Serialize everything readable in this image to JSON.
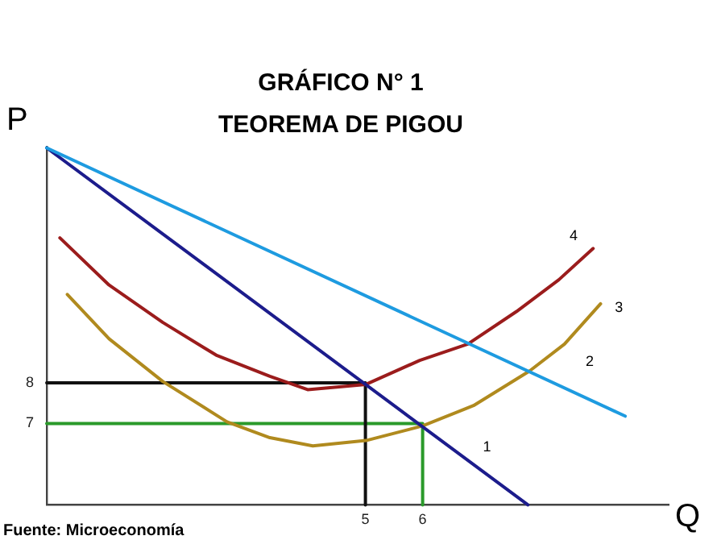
{
  "chart_data": {
    "type": "line",
    "title": "GRÁFICO N° 1",
    "subtitle": "TEOREMA DE PIGOU",
    "xlabel": "Q",
    "ylabel": "P",
    "xlim": [
      -0.57,
      10.3
    ],
    "ylim": [
      5,
      13.8
    ],
    "xticks": [
      5,
      6
    ],
    "yticks": [
      7,
      8
    ],
    "legend": false,
    "marker": "none",
    "line_style": "solid",
    "series": [
      {
        "color": "#1e9be0",
        "x": [
          -0.57,
          9.54
        ],
        "values": [
          13.77,
          7.18
        ]
      },
      {
        "color": "#1c1c8c",
        "x": [
          -0.57,
          7.84
        ],
        "values": [
          13.77,
          5
        ]
      },
      {
        "color": "#9b1c1c",
        "x": [
          -0.34,
          0.52,
          1.46,
          2.39,
          3.33,
          3.99,
          5.01,
          5.95,
          6.79,
          7.64,
          8.38,
          8.98
        ],
        "values": [
          11.56,
          10.4,
          9.48,
          8.68,
          8.16,
          7.83,
          7.96,
          8.55,
          8.95,
          9.75,
          10.53,
          11.3
        ]
      },
      {
        "color": "#b08a1e",
        "x": [
          -0.21,
          0.52,
          1.46,
          2.58,
          3.33,
          4.08,
          5.01,
          6,
          6.89,
          7.87,
          8.48,
          9.11
        ],
        "values": [
          10.17,
          9.08,
          8.03,
          7.04,
          6.65,
          6.45,
          6.58,
          6.94,
          7.44,
          8.29,
          8.95,
          9.94
        ]
      },
      {
        "color": "#111111",
        "x": [
          -0.57,
          5,
          5
        ],
        "values": [
          8,
          8,
          5
        ]
      },
      {
        "color": "#2a9a2a",
        "x": [
          -0.57,
          6,
          6
        ],
        "values": [
          7,
          7,
          5
        ]
      }
    ],
    "annotations": [
      "4",
      "3",
      "2",
      "1",
      "Fuente: Microeconomía"
    ]
  }
}
